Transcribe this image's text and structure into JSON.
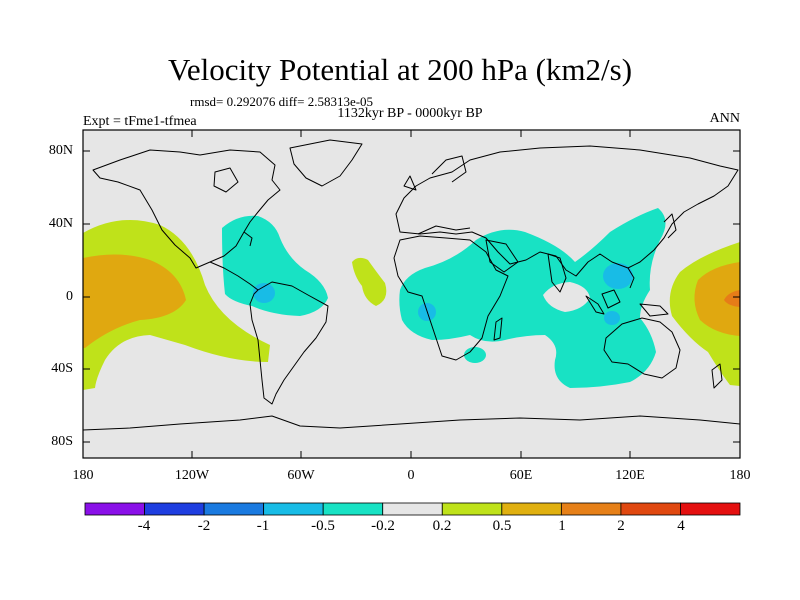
{
  "title": "Velocity Potential at 200 hPa (km2/s)",
  "stats": "rmsd= 0.292076 diff= 2.58313e-05",
  "period": "1132kyr BP - 0000kyr BP",
  "experiment": "Expt = tFme1-tfmea",
  "season": "ANN",
  "axes": {
    "lat_labels": [
      "80N",
      "40N",
      "0",
      "40S",
      "80S"
    ],
    "lon_labels": [
      "180",
      "120W",
      "60W",
      "0",
      "60E",
      "120E",
      "180"
    ]
  },
  "colorbar": {
    "labels": [
      "-4",
      "-2",
      "-1",
      "-0.5",
      "-0.2",
      "0.2",
      "0.5",
      "1",
      "2",
      "4"
    ],
    "colors": [
      "#8a10e8",
      "#1e3ee0",
      "#1a7ae0",
      "#18bce6",
      "#18e2c4",
      "#e6e6e6",
      "#bfe21a",
      "#e0b010",
      "#e68018",
      "#e04810",
      "#e41010"
    ]
  },
  "colors": {
    "background": "#e6e6e6",
    "negative_small": "#18e2c4",
    "negative_medium": "#18bce6",
    "positive_small": "#bfe21a",
    "positive_medium": "#e0a810",
    "positive_large": "#e67c18"
  }
}
